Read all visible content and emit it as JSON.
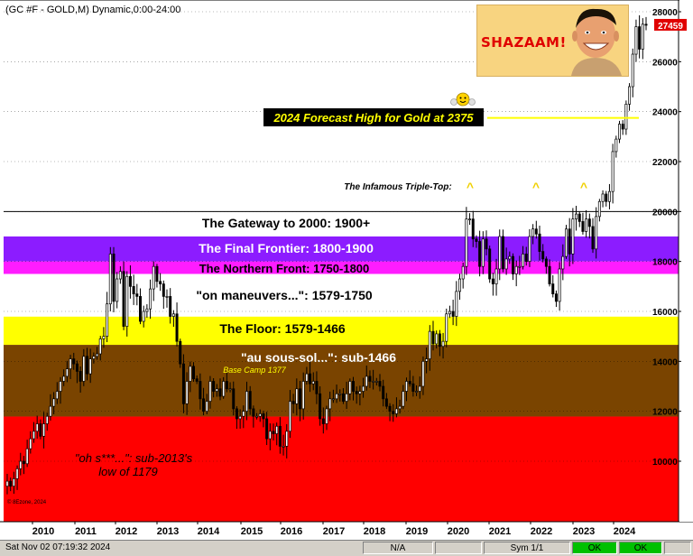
{
  "title": "(GC #F - GOLD,M) Dynamic,0:00-24:00",
  "price_box": "27459",
  "colors": {
    "up_candle": "#ffffff",
    "down_candle": "#000000",
    "price_box": "#e00000",
    "forecast_line": "#ffff00"
  },
  "bands": [
    {
      "id": "gateway",
      "label": "The Gateway to 2000:  1900+",
      "from": 1900,
      "to": 2000,
      "color": "#ffffff",
      "text_color": "#000000"
    },
    {
      "id": "frontier",
      "label": "The Final Frontier:  1800-1900",
      "from": 1800,
      "to": 1900,
      "color": "#8c1cff",
      "text_color": "#ffffff"
    },
    {
      "id": "northern",
      "label": "The Northern Front:  1750-1800",
      "from": 1750,
      "to": 1800,
      "color": "#ff1cff",
      "text_color": "#000000"
    },
    {
      "id": "maneuvers",
      "label": "\"on maneuvers...\":  1579-1750",
      "from": 1579,
      "to": 1750,
      "color": "#ffffff",
      "text_color": "#000000"
    },
    {
      "id": "floor",
      "label": "The Floor:  1579-1466",
      "from": 1466,
      "to": 1579,
      "color": "#ffff00",
      "text_color": "#000000"
    },
    {
      "id": "soussol",
      "label": "\"au sous-sol...\":  sub-1466",
      "from": 1179,
      "to": 1466,
      "color": "#7a4400",
      "text_color": "#ffffff"
    },
    {
      "id": "ohs",
      "label": "\"oh s***...\":  sub-2013's low of 1179",
      "from": 800,
      "to": 1179,
      "color": "#ff0000",
      "text_color": "#000000"
    }
  ],
  "annotations": {
    "base_camp": "Base Camp 1377",
    "triple_top": "The Infamous Triple-Top:",
    "caret": "^",
    "forecast": "2024 Forecast High for Gold at 2375",
    "shazaam": "SHAZAAM!",
    "credit": "© 8Ezone, 2024"
  },
  "statusbar": {
    "datetime": "Sat Nov 02 07:19:32 2024",
    "na": "N/A",
    "sym": "Sym 1/1",
    "ok1": "OK",
    "ok2": "OK"
  },
  "chart_data": {
    "type": "candlestick",
    "title": "(GC #F - GOLD,M) Dynamic,0:00-24:00",
    "x_labels": [
      "2010",
      "2011",
      "2012",
      "2013",
      "2014",
      "2015",
      "2016",
      "2017",
      "2018",
      "2019",
      "2020",
      "2021",
      "2022",
      "2023",
      "2024"
    ],
    "y_ticks": [
      10000,
      12000,
      14000,
      16000,
      18000,
      20000,
      22000,
      24000,
      26000,
      28000
    ],
    "y_range": [
      8400,
      28300
    ],
    "forecast_high": 2375,
    "last_price": 27459,
    "closes": [
      9200,
      9000,
      9300,
      9700,
      10000,
      9900,
      10500,
      10900,
      11200,
      11500,
      11000,
      11500,
      11800,
      12200,
      12500,
      12800,
      13200,
      13400,
      13700,
      14100,
      13900,
      13600,
      13200,
      14200,
      13500,
      14100,
      14200,
      14300,
      14900,
      15000,
      16300,
      18300,
      16400,
      17300,
      17600,
      15400,
      17400,
      17000,
      16700,
      16600,
      15600,
      16000,
      16100,
      16900,
      17800,
      17200,
      17100,
      16600,
      16600,
      15800,
      15900,
      14800,
      13900,
      12300,
      13200,
      13800,
      13300,
      13200,
      12500,
      12000,
      12400,
      13200,
      12800,
      12900,
      12600,
      13200,
      12900,
      12900,
      12100,
      11700,
      11800,
      12000,
      12800,
      12100,
      11800,
      11800,
      11900,
      11700,
      10900,
      11200,
      11100,
      11400,
      10600,
      10600,
      11200,
      12400,
      12300,
      12900,
      12100,
      13200,
      13500,
      13100,
      13200,
      12700,
      11700,
      11500,
      12100,
      12500,
      12500,
      12700,
      12700,
      12400,
      12700,
      13200,
      12800,
      12700,
      12800,
      13000,
      13400,
      13200,
      13200,
      13200,
      13000,
      12500,
      12200,
      12000,
      11900,
      12100,
      12200,
      12800,
      13200,
      13100,
      12800,
      12800,
      13000,
      14000,
      14100,
      15200,
      14700,
      15100,
      14600,
      14800,
      15900,
      16000,
      15800,
      16800,
      17300,
      17800,
      19700,
      19700,
      18900,
      18800,
      17800,
      18900,
      18500,
      17300,
      17100,
      17700,
      19000,
      17700,
      18100,
      18200,
      17500,
      17800,
      17800,
      18300,
      18000,
      19000,
      19300,
      19100,
      18400,
      18100,
      17800,
      17100,
      16700,
      16400,
      17700,
      18200,
      19300,
      18300,
      19700,
      19900,
      19600,
      19200,
      19700,
      19400,
      18500,
      19800,
      20400,
      20700,
      20400,
      20800,
      22400,
      22900,
      23500,
      23300,
      24300,
      25000,
      26300,
      27400,
      26500,
      27500,
      27459
    ]
  }
}
